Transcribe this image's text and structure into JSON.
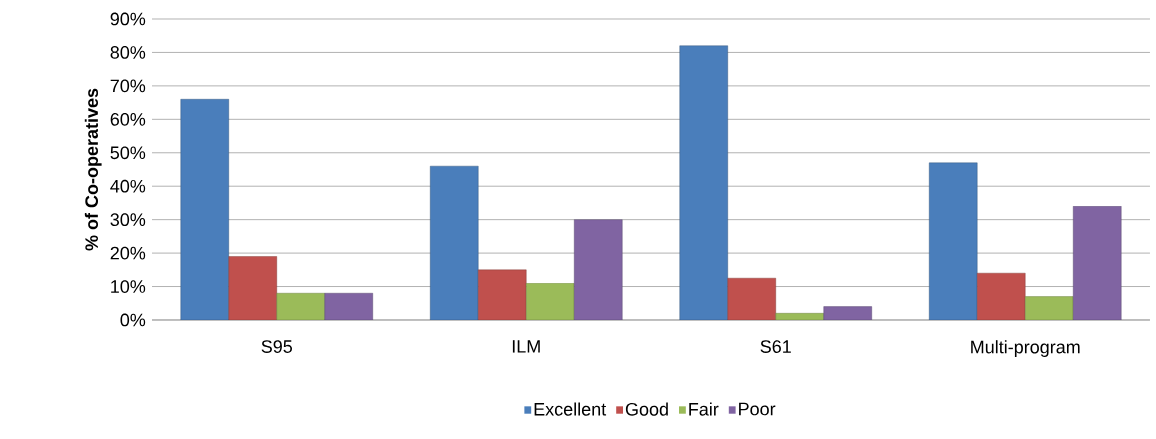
{
  "chart_data": {
    "type": "bar",
    "ylabel": "% of Co-operatives",
    "categories": [
      "S95",
      "ILM",
      "S61",
      "Multi-program"
    ],
    "series": [
      {
        "name": "Excellent",
        "color": "#4a7ebb",
        "values": [
          66,
          46,
          82,
          47
        ]
      },
      {
        "name": "Good",
        "color": "#c0504d",
        "values": [
          19,
          15,
          12.5,
          14
        ]
      },
      {
        "name": "Fair",
        "color": "#9bbb59",
        "values": [
          8,
          11,
          2,
          7
        ]
      },
      {
        "name": "Poor",
        "color": "#8064a2",
        "values": [
          8,
          30,
          4,
          34
        ]
      }
    ],
    "ylim": [
      0,
      90
    ],
    "yticks": [
      {
        "value": 0,
        "label": "0%"
      },
      {
        "value": 10,
        "label": "10%"
      },
      {
        "value": 20,
        "label": "20%"
      },
      {
        "value": 30,
        "label": "30%"
      },
      {
        "value": 40,
        "label": "40%"
      },
      {
        "value": 50,
        "label": "50%"
      },
      {
        "value": 60,
        "label": "60%"
      },
      {
        "value": 70,
        "label": "70%"
      },
      {
        "value": 80,
        "label": "80%"
      },
      {
        "value": 90,
        "label": "90%"
      }
    ],
    "grid": "y",
    "legend": "bottom"
  }
}
